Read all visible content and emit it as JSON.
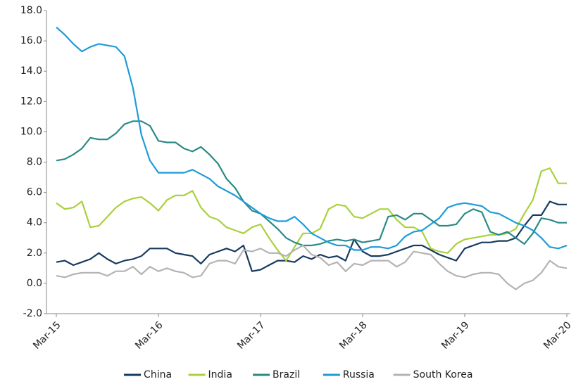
{
  "chart_data": {
    "type": "line",
    "categories": [
      "Mar-15",
      null,
      null,
      null,
      null,
      null,
      null,
      null,
      null,
      null,
      null,
      null,
      "Mar-16",
      null,
      null,
      null,
      null,
      null,
      null,
      null,
      null,
      null,
      null,
      null,
      "Mar-17",
      null,
      null,
      null,
      null,
      null,
      null,
      null,
      null,
      null,
      null,
      null,
      "Mar-18",
      null,
      null,
      null,
      null,
      null,
      null,
      null,
      null,
      null,
      null,
      null,
      "Mar-19",
      null,
      null,
      null,
      null,
      null,
      null,
      null,
      null,
      null,
      null,
      null,
      "Mar-20"
    ],
    "ylim": [
      -2,
      18
    ],
    "yticks": [
      {
        "value": -2,
        "label": "-2.0"
      },
      {
        "value": 0,
        "label": "0.0"
      },
      {
        "value": 2,
        "label": "2.0"
      },
      {
        "value": 4,
        "label": "4.0"
      },
      {
        "value": 6,
        "label": "6.0"
      },
      {
        "value": 8,
        "label": "8.0"
      },
      {
        "value": 10,
        "label": "10.0"
      },
      {
        "value": 12,
        "label": "12.0"
      },
      {
        "value": 14,
        "label": "14.0"
      },
      {
        "value": 16,
        "label": "16.0"
      },
      {
        "value": 18,
        "label": "18.0"
      }
    ],
    "grid": false,
    "legend": "bottom",
    "series": [
      {
        "name": "China",
        "color": "#173a5e",
        "values": [
          1.4,
          1.5,
          1.2,
          1.4,
          1.6,
          2.0,
          1.6,
          1.3,
          1.5,
          1.6,
          1.8,
          2.3,
          2.3,
          2.3,
          2.0,
          1.9,
          1.8,
          1.3,
          1.9,
          2.1,
          2.3,
          2.1,
          2.5,
          0.8,
          0.9,
          1.2,
          1.5,
          1.5,
          1.4,
          1.8,
          1.6,
          1.9,
          1.7,
          1.8,
          1.5,
          2.9,
          2.1,
          1.8,
          1.8,
          1.9,
          2.1,
          2.3,
          2.5,
          2.5,
          2.2,
          1.9,
          1.7,
          1.5,
          2.3,
          2.5,
          2.7,
          2.7,
          2.8,
          2.8,
          3.0,
          3.8,
          4.5,
          4.5,
          5.4,
          5.2,
          5.2
        ]
      },
      {
        "name": "India",
        "color": "#a9d13c",
        "values": [
          5.3,
          4.9,
          5.0,
          5.4,
          3.7,
          3.8,
          4.4,
          5.0,
          5.4,
          5.6,
          5.7,
          5.3,
          4.8,
          5.5,
          5.8,
          5.8,
          6.1,
          5.0,
          4.4,
          4.2,
          3.7,
          3.5,
          3.3,
          3.7,
          3.9,
          3.0,
          2.2,
          1.5,
          2.4,
          3.3,
          3.3,
          3.6,
          4.9,
          5.2,
          5.1,
          4.4,
          4.3,
          4.6,
          4.9,
          4.9,
          4.2,
          3.7,
          3.7,
          3.4,
          2.3,
          2.1,
          2.0,
          2.6,
          2.9,
          3.0,
          3.1,
          3.2,
          3.2,
          3.3,
          3.6,
          4.6,
          5.5,
          7.4,
          7.6,
          6.6,
          6.6
        ]
      },
      {
        "name": "Brazil",
        "color": "#2a8a86",
        "values": [
          8.1,
          8.2,
          8.5,
          8.9,
          9.6,
          9.5,
          9.5,
          9.9,
          10.5,
          10.7,
          10.7,
          10.4,
          9.4,
          9.3,
          9.3,
          8.9,
          8.7,
          9.0,
          8.5,
          7.9,
          6.9,
          6.3,
          5.4,
          4.8,
          4.6,
          4.1,
          3.6,
          3.0,
          2.7,
          2.5,
          2.5,
          2.6,
          2.8,
          2.9,
          2.8,
          2.9,
          2.7,
          2.8,
          2.9,
          4.4,
          4.5,
          4.2,
          4.6,
          4.6,
          4.2,
          3.8,
          3.8,
          3.9,
          4.6,
          4.9,
          4.7,
          3.4,
          3.2,
          3.4,
          3.0,
          2.6,
          3.3,
          4.3,
          4.2,
          4.0,
          4.0
        ]
      },
      {
        "name": "Russia",
        "color": "#1f9bd7",
        "values": [
          16.9,
          16.4,
          15.8,
          15.3,
          15.6,
          15.8,
          15.7,
          15.6,
          15.0,
          12.9,
          9.8,
          8.1,
          7.3,
          7.3,
          7.3,
          7.3,
          7.5,
          7.2,
          6.9,
          6.4,
          6.1,
          5.8,
          5.4,
          5.0,
          4.6,
          4.3,
          4.1,
          4.1,
          4.4,
          3.9,
          3.3,
          3.0,
          2.7,
          2.5,
          2.5,
          2.2,
          2.2,
          2.4,
          2.4,
          2.3,
          2.5,
          3.1,
          3.4,
          3.5,
          3.9,
          4.3,
          5.0,
          5.2,
          5.3,
          5.2,
          5.1,
          4.7,
          4.6,
          4.3,
          4.0,
          3.8,
          3.5,
          3.0,
          2.4,
          2.3,
          2.5
        ]
      },
      {
        "name": "South Korea",
        "color": "#b3b3b3",
        "values": [
          0.5,
          0.4,
          0.6,
          0.7,
          0.7,
          0.7,
          0.5,
          0.8,
          0.8,
          1.1,
          0.6,
          1.1,
          0.8,
          1.0,
          0.8,
          0.7,
          0.4,
          0.5,
          1.3,
          1.5,
          1.5,
          1.3,
          2.2,
          2.1,
          2.3,
          2.0,
          2.0,
          1.8,
          2.2,
          2.5,
          1.9,
          1.7,
          1.2,
          1.4,
          0.8,
          1.3,
          1.2,
          1.5,
          1.5,
          1.5,
          1.1,
          1.4,
          2.1,
          2.0,
          1.9,
          1.3,
          0.8,
          0.5,
          0.4,
          0.6,
          0.7,
          0.7,
          0.6,
          0.0,
          -0.4,
          0.0,
          0.2,
          0.7,
          1.5,
          1.1,
          1.0
        ]
      }
    ]
  }
}
